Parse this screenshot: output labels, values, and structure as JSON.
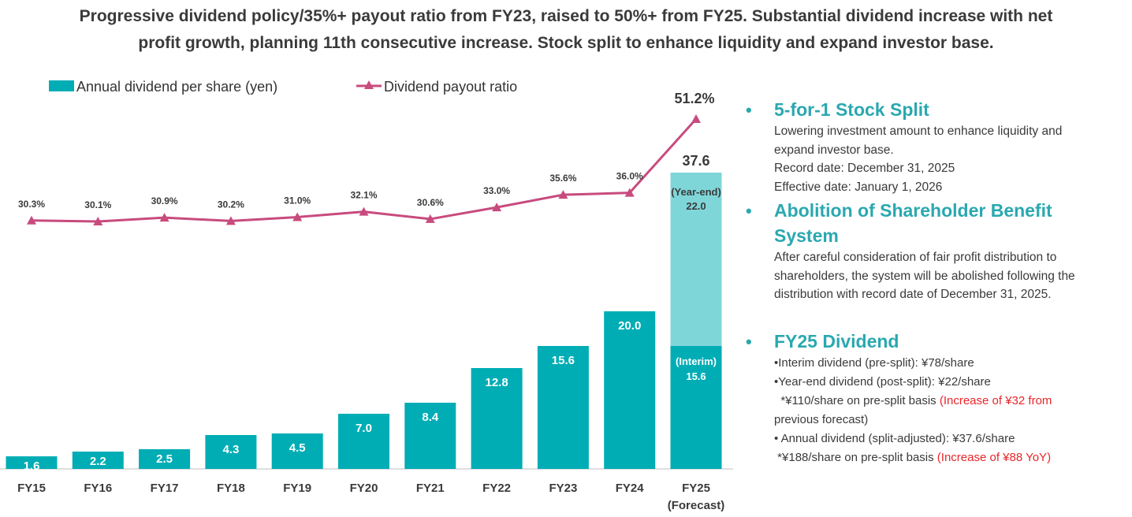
{
  "headline": {
    "line1": "Progressive dividend policy/35%+ payout ratio from FY23, raised to 50%+ from FY25. Substantial dividend increase with net",
    "line2": "profit growth, planning 11th consecutive increase. Stock split to enhance liquidity and expand investor base."
  },
  "chart_data": {
    "type": "bar",
    "categories": [
      "FY15",
      "FY16",
      "FY17",
      "FY18",
      "FY19",
      "FY20",
      "FY21",
      "FY22",
      "FY23",
      "FY24",
      "FY25"
    ],
    "category_sublabel_last": "(Forecast)",
    "series": [
      {
        "name": "Annual dividend per share (yen)",
        "type": "bar",
        "values": [
          1.6,
          2.2,
          2.5,
          4.3,
          4.5,
          7.0,
          8.4,
          12.8,
          15.6,
          20.0,
          37.6
        ],
        "labels": [
          "1.6",
          "2.2",
          "2.5",
          "4.3",
          "4.5",
          "7.0",
          "8.4",
          "12.8",
          "15.6",
          "20.0",
          "37.6"
        ]
      },
      {
        "name": "Dividend payout ratio",
        "type": "line",
        "unit": "%",
        "values": [
          30.3,
          30.1,
          30.9,
          30.2,
          31.0,
          32.1,
          30.6,
          33.0,
          35.6,
          36.0,
          51.2
        ],
        "labels": [
          "30.3%",
          "30.1%",
          "30.9%",
          "30.2%",
          "31.0%",
          "32.1%",
          "30.6%",
          "33.0%",
          "35.6%",
          "36.0%",
          "51.2%"
        ]
      }
    ],
    "fy25_breakdown": {
      "interim": {
        "label": "(Interim)",
        "value": 15.6,
        "text": "15.6"
      },
      "year_end": {
        "label": "(Year-end)",
        "value": 22.0,
        "text": "22.0"
      }
    },
    "colors": {
      "bar": "#00adb5",
      "bar_yearend": "#7fd6d9",
      "line": "#c84b7e"
    }
  },
  "sections": [
    {
      "title": "5-for-1 Stock Split",
      "lines": [
        "Lowering investment amount to enhance liquidity and",
        "expand investor base.",
        "Record date: December 31, 2025",
        "Effective date: January 1, 2026"
      ]
    },
    {
      "title_l1": "Abolition of Shareholder Benefit",
      "title_l2": "System",
      "lines": [
        "After careful consideration of fair profit distribution to",
        "shareholders, the system will be abolished following the",
        "distribution with record date of December 31, 2025."
      ]
    },
    {
      "title": "FY25 Dividend",
      "l1": "•Interim dividend (pre-split): ¥78/share",
      "l2": "•Year-end dividend (post-split): ¥22/share",
      "l3a": "  *¥110/share on pre-split basis ",
      "l3b": "(Increase of ¥32 from",
      "l4": "previous forecast)",
      "l5": "• Annual dividend (split-adjusted): ¥37.6/share",
      "l6a": " *¥188/share on pre-split basis ",
      "l6b": "(Increase of ¥88 YoY)"
    }
  ]
}
